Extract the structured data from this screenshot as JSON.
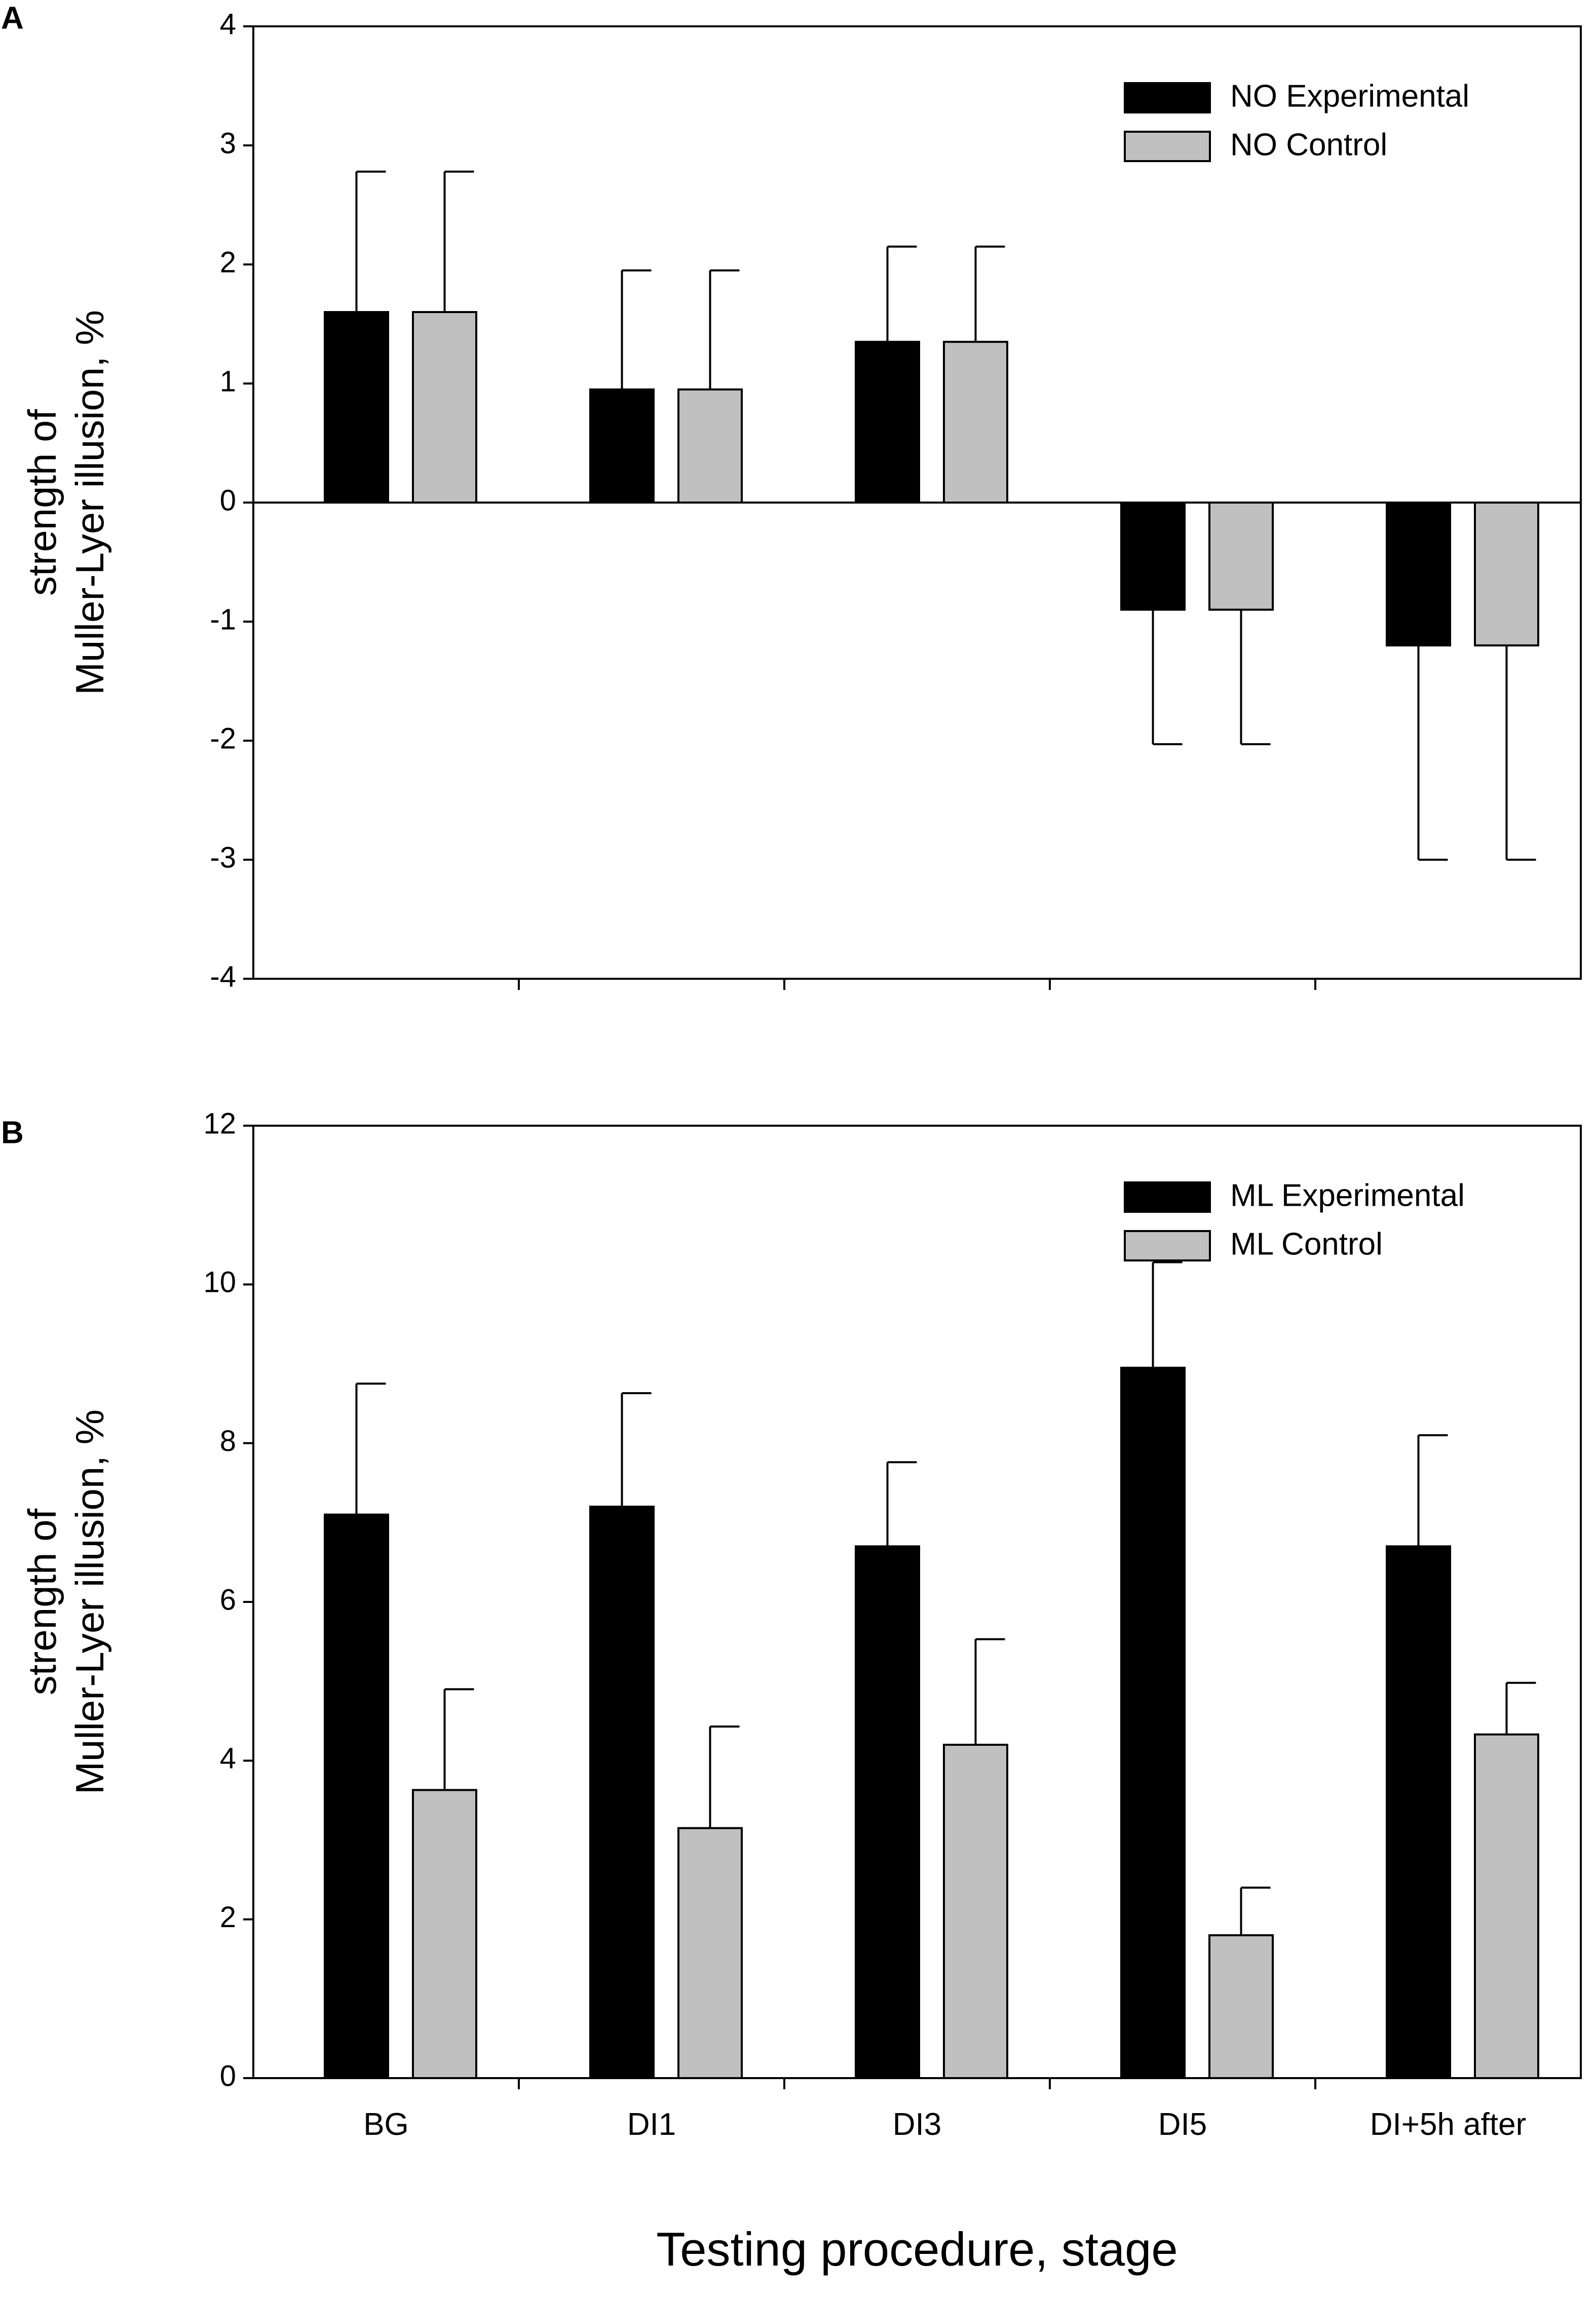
{
  "chart_data": [
    {
      "type": "bar",
      "panel": "A",
      "categories": [
        "BG",
        "DI1",
        "DI3",
        "DI5",
        "DI+5h after"
      ],
      "series": [
        {
          "name": "NO Experimental",
          "color": "#000000",
          "values": [
            1.6,
            0.95,
            1.35,
            -0.9,
            -1.2
          ],
          "errors": [
            1.18,
            1.0,
            0.8,
            1.13,
            1.8
          ]
        },
        {
          "name": "NO Control",
          "color": "#c0c0c0",
          "values": [
            1.6,
            0.95,
            1.35,
            -0.9,
            -1.2
          ],
          "errors": [
            1.18,
            1.0,
            0.8,
            1.13,
            1.8
          ]
        }
      ],
      "ylabel": [
        "strength of",
        "Muller-Lyer illusion, %"
      ],
      "xlabel": "",
      "ylim": [
        -4,
        4
      ],
      "yticks": [
        -4,
        -3,
        -2,
        -1,
        0,
        1,
        2,
        3,
        4
      ],
      "show_category_labels": false,
      "zero_line": true,
      "legend": "top-right"
    },
    {
      "type": "bar",
      "panel": "B",
      "categories": [
        "BG",
        "DI1",
        "DI3",
        "DI5",
        "DI+5h after"
      ],
      "series": [
        {
          "name": "ML Experimental",
          "color": "#000000",
          "values": [
            7.1,
            7.2,
            6.7,
            8.95,
            6.7
          ],
          "errors": [
            1.65,
            1.43,
            1.06,
            1.33,
            1.4
          ]
        },
        {
          "name": "ML Control",
          "color": "#c0c0c0",
          "values": [
            3.63,
            3.15,
            4.2,
            1.8,
            4.33
          ],
          "errors": [
            1.27,
            1.28,
            1.33,
            0.6,
            0.65
          ]
        }
      ],
      "ylabel": [
        "strength of",
        "Muller-Lyer illusion, %"
      ],
      "xlabel": "Testing procedure, stage",
      "ylim": [
        0,
        12
      ],
      "yticks": [
        0,
        2,
        4,
        6,
        8,
        10,
        12
      ],
      "show_category_labels": true,
      "zero_line": false,
      "legend": "top-right"
    }
  ]
}
